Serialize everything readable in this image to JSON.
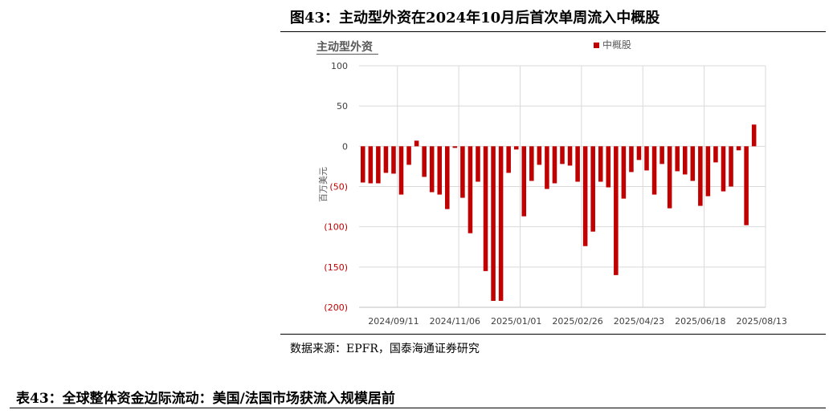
{
  "figure": {
    "title": "图43：主动型外资在2024年10月后首次单周流入中概股",
    "source": "数据来源：EPFR，国泰海通证券研究"
  },
  "table": {
    "title": "表43：全球整体资金边际流动：美国/法国市场获流入规模居前"
  },
  "colors": {
    "bar": "#c00000",
    "negative_tick": "#c00000",
    "grid": "#d9d9d9"
  },
  "chart_data": {
    "type": "bar",
    "title": "主动型外资",
    "ylabel": "百万美元",
    "ylim": [
      -200,
      100
    ],
    "yticks": [
      100,
      50,
      0,
      -50,
      -100,
      -150,
      -200
    ],
    "ytick_labels": [
      "100",
      "50",
      "0",
      "(50)",
      "(100)",
      "(150)",
      "(200)"
    ],
    "grid": true,
    "legend_position": "top",
    "xtick_labels": [
      "2024/09/11",
      "2024/11/06",
      "2025/01/01",
      "2025/02/26",
      "2025/04/23",
      "2025/06/18",
      "2025/08/13"
    ],
    "xtick_index": [
      4,
      12,
      20,
      28,
      36,
      44,
      52
    ],
    "categories": [
      "2024/08/14",
      "2024/08/21",
      "2024/08/28",
      "2024/09/04",
      "2024/09/11",
      "2024/09/18",
      "2024/09/25",
      "2024/10/02",
      "2024/10/09",
      "2024/10/16",
      "2024/10/23",
      "2024/10/30",
      "2024/11/06",
      "2024/11/13",
      "2024/11/20",
      "2024/11/27",
      "2024/12/04",
      "2024/12/11",
      "2024/12/18",
      "2024/12/25",
      "2025/01/01",
      "2025/01/08",
      "2025/01/15",
      "2025/01/22",
      "2025/01/29",
      "2025/02/05",
      "2025/02/12",
      "2025/02/19",
      "2025/02/26",
      "2025/03/05",
      "2025/03/12",
      "2025/03/19",
      "2025/03/26",
      "2025/04/02",
      "2025/04/09",
      "2025/04/16",
      "2025/04/23",
      "2025/04/30",
      "2025/05/07",
      "2025/05/14",
      "2025/05/21",
      "2025/05/28",
      "2025/06/04",
      "2025/06/11",
      "2025/06/18",
      "2025/06/25",
      "2025/07/02",
      "2025/07/09",
      "2025/07/16",
      "2025/07/23",
      "2025/07/30",
      "2025/08/06",
      "2025/08/13"
    ],
    "series": [
      {
        "name": "中概股",
        "values": [
          -45,
          -46,
          -46,
          -33,
          -34,
          -60,
          -23,
          7,
          -38,
          -57,
          -60,
          -78,
          -2,
          -64,
          -108,
          -44,
          -155,
          -192,
          -192,
          -33,
          -4,
          -87,
          -43,
          -23,
          -53,
          -46,
          -22,
          -24,
          -44,
          -124,
          -106,
          -44,
          -51,
          -160,
          -65,
          -32,
          -17,
          -30,
          -60,
          -22,
          -77,
          -31,
          -35,
          -43,
          -74,
          -62,
          -20,
          -56,
          -50,
          -5,
          -98,
          27,
          0
        ]
      }
    ]
  }
}
